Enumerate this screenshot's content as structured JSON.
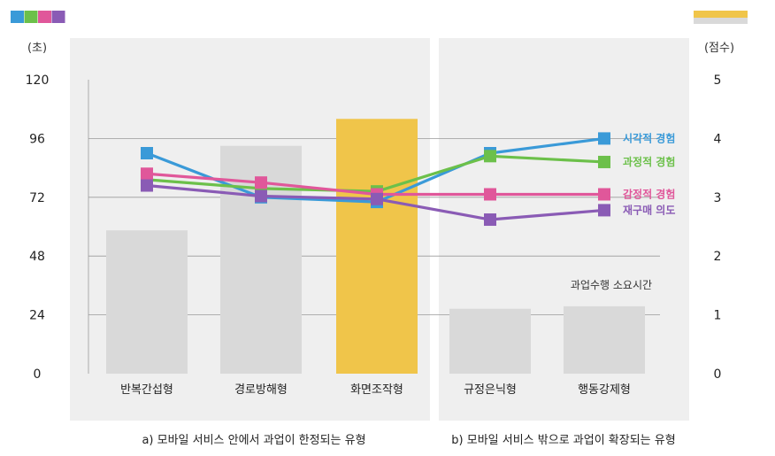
{
  "chart_data": {
    "type": "bar",
    "categories": [
      "반복간섭형",
      "경로방해형",
      "화면조작형",
      "규정은닉형",
      "행동강제형"
    ],
    "groups": [
      {
        "label": "a) 모바일 서비스 안에서 과업이 한정되는 유형",
        "categories": [
          "반복간섭형",
          "경로방해형",
          "화면조작형"
        ]
      },
      {
        "label": "b) 모바일 서비스 밖으로 과업이 확장되는 유형",
        "categories": [
          "규정은닉형",
          "행동강제형"
        ]
      }
    ],
    "left_axis": {
      "unit": "(초)",
      "ticks": [
        0,
        24,
        48,
        72,
        96,
        120
      ],
      "ylim": [
        0,
        120
      ]
    },
    "right_axis": {
      "unit": "(점수)",
      "ticks": [
        0,
        1,
        2,
        3,
        4,
        5
      ],
      "ylim": [
        0,
        5
      ]
    },
    "bar_series": {
      "name": "과업수행 소요시간",
      "values": [
        58.5,
        93,
        104,
        26.5,
        27.5
      ],
      "colors": [
        "#d9d9d9",
        "#d9d9d9",
        "#f0c54a",
        "#d9d9d9",
        "#d9d9d9"
      ]
    },
    "line_series": [
      {
        "name": "시각적 경험",
        "color": "#3a9ad8",
        "values": [
          3.75,
          3.0,
          2.92,
          3.75,
          4.0
        ]
      },
      {
        "name": "과정적 경험",
        "color": "#6cc04a",
        "values": [
          3.3,
          3.15,
          3.1,
          3.7,
          3.6
        ]
      },
      {
        "name": "감정적 경험",
        "color": "#e0579a",
        "values": [
          3.4,
          3.25,
          3.05,
          3.05,
          3.05
        ]
      },
      {
        "name": "재구매 의도",
        "color": "#8a5bb5",
        "values": [
          3.2,
          3.02,
          2.97,
          2.62,
          2.78
        ]
      }
    ],
    "legend_swatches": {
      "line_colors": [
        "#3a9ad8",
        "#6cc04a",
        "#e0579a",
        "#8a5bb5"
      ],
      "bar_colors": [
        "#f0c54a",
        "#d9d9d9"
      ]
    }
  }
}
